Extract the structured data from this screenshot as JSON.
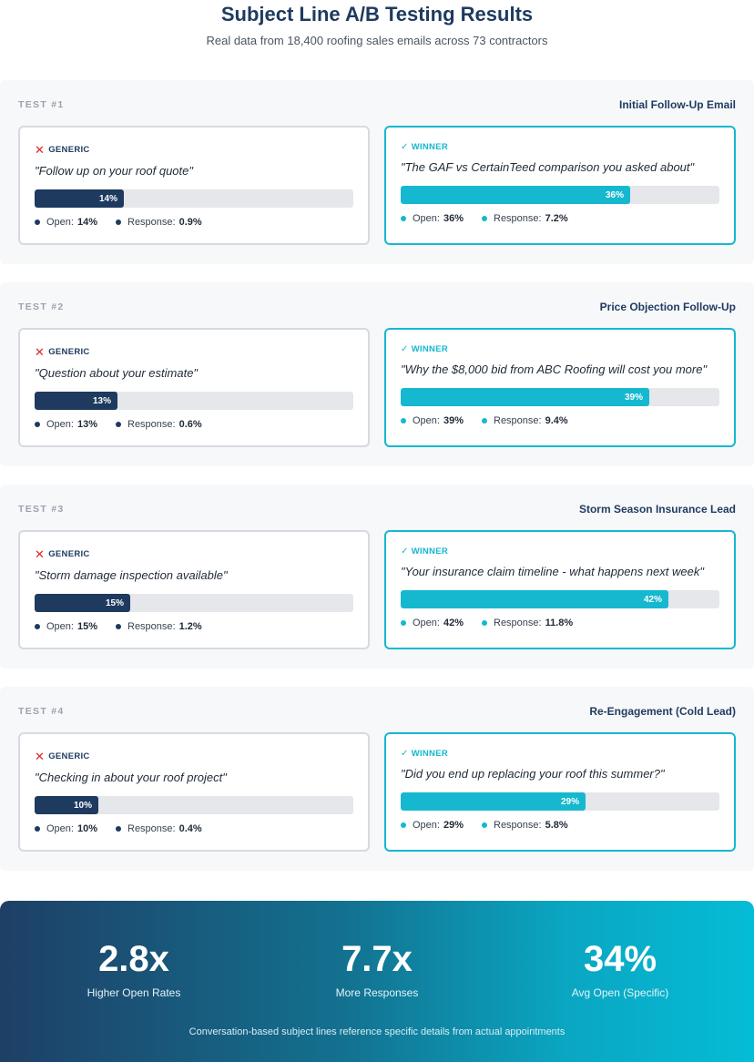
{
  "header": {
    "title": "Subject Line A/B Testing Results",
    "subtitle": "Real data from 18,400 roofing sales emails across 73 contractors"
  },
  "labels": {
    "generic_tag": "GENERIC",
    "winner_tag": "WINNER",
    "open": "Open:",
    "response": "Response:"
  },
  "tests": [
    {
      "num": "TEST #1",
      "name": "Initial Follow-Up Email",
      "generic": {
        "quote": "\"Follow up on your roof quote\"",
        "bar_label": "14%",
        "bar_fraction": 0.28,
        "open": "14%",
        "response": "0.9%"
      },
      "winner": {
        "quote": "\"The GAF vs CertainTeed comparison you asked about\"",
        "bar_label": "36%",
        "bar_fraction": 0.72,
        "open": "36%",
        "response": "7.2%"
      }
    },
    {
      "num": "TEST #2",
      "name": "Price Objection Follow-Up",
      "generic": {
        "quote": "\"Question about your estimate\"",
        "bar_label": "13%",
        "bar_fraction": 0.26,
        "open": "13%",
        "response": "0.6%"
      },
      "winner": {
        "quote": "\"Why the $8,000 bid from ABC Roofing will cost you more\"",
        "bar_label": "39%",
        "bar_fraction": 0.78,
        "open": "39%",
        "response": "9.4%"
      }
    },
    {
      "num": "TEST #3",
      "name": "Storm Season Insurance Lead",
      "generic": {
        "quote": "\"Storm damage inspection available\"",
        "bar_label": "15%",
        "bar_fraction": 0.3,
        "open": "15%",
        "response": "1.2%"
      },
      "winner": {
        "quote": "\"Your insurance claim timeline - what happens next week\"",
        "bar_label": "42%",
        "bar_fraction": 0.84,
        "open": "42%",
        "response": "11.8%"
      }
    },
    {
      "num": "TEST #4",
      "name": "Re-Engagement (Cold Lead)",
      "generic": {
        "quote": "\"Checking in about your roof project\"",
        "bar_label": "10%",
        "bar_fraction": 0.2,
        "open": "10%",
        "response": "0.4%"
      },
      "winner": {
        "quote": "\"Did you end up replacing your roof this summer?\"",
        "bar_label": "29%",
        "bar_fraction": 0.58,
        "open": "29%",
        "response": "5.8%"
      }
    }
  ],
  "summary": {
    "metrics": [
      {
        "value": "2.8x",
        "label": "Higher Open Rates"
      },
      {
        "value": "7.7x",
        "label": "More Responses"
      },
      {
        "value": "34%",
        "label": "Avg Open (Specific)"
      }
    ],
    "note": "Conversation-based subject lines reference specific details from actual appointments"
  },
  "colors": {
    "navy": "#1e3a5f",
    "teal": "#15b8cf",
    "red_x": "#e02424"
  }
}
